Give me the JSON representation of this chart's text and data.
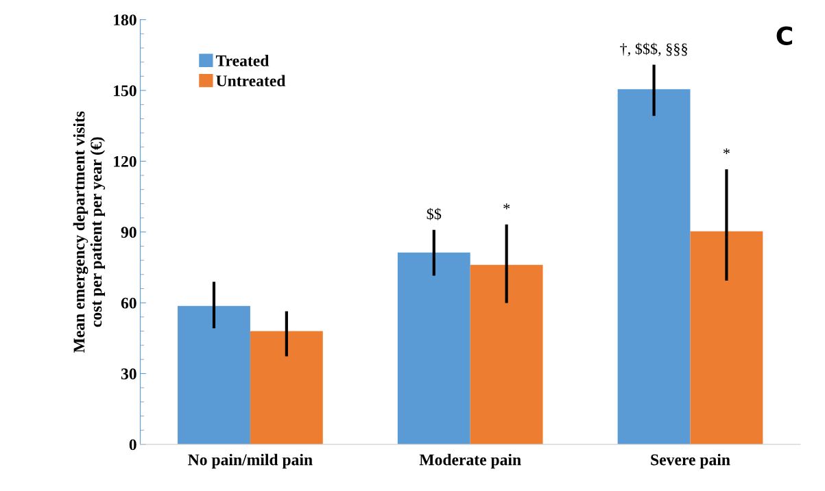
{
  "chart_data": {
    "type": "bar",
    "ylabel": "Mean emergency department visits cost per patient per year (€)",
    "categories": [
      "No pain/mild pain",
      "Moderate pain",
      "Severe pain"
    ],
    "series": [
      {
        "name": "Treated",
        "color": "#5b9bd5",
        "values": [
          58.7,
          81.3,
          150.5
        ],
        "errors": [
          [
            49.2,
            68.9
          ],
          [
            71.5,
            90.9
          ],
          [
            139.2,
            160.9
          ]
        ]
      },
      {
        "name": "Untreated",
        "color": "#ed7d31",
        "values": [
          48.0,
          76.1,
          90.3
        ],
        "errors": [
          [
            37.3,
            56.4
          ],
          [
            59.9,
            93.2
          ],
          [
            69.4,
            116.6
          ]
        ]
      }
    ],
    "ylim": [
      0,
      180
    ],
    "yticks": [
      0,
      30,
      60,
      90,
      120,
      150,
      180
    ],
    "grid": false,
    "legend": "top left",
    "annotations": [
      "C",
      "$$",
      "*",
      "†, $$$, §§§",
      "*"
    ]
  }
}
